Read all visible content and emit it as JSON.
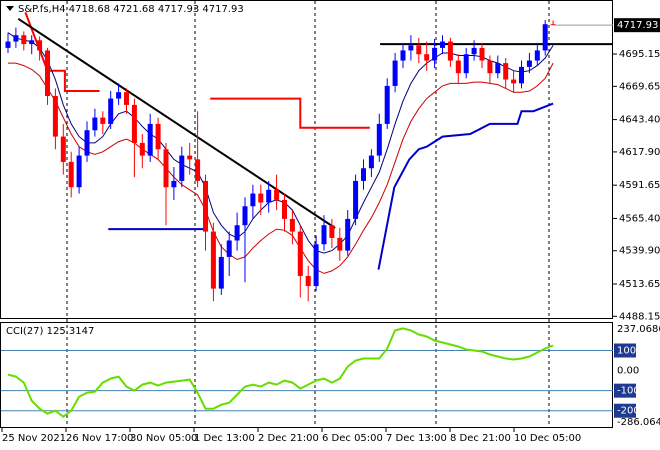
{
  "chart_data": [
    {
      "type": "candlestick",
      "title": "S&P.fs,H4  4718.68 4721.68 4717.93 4717.93",
      "x_labels": [
        "25 Nov 2021",
        "26 Nov 17:00",
        "30 Nov 05:00",
        "1 Dec 13:00",
        "2 Dec 21:00",
        "6 Dec 05:00",
        "7 Dec 13:00",
        "8 Dec 21:00",
        "10 Dec 05:00"
      ],
      "up_color": "#0000ff",
      "down_color": "#ff0000",
      "open": [
        4700,
        4705,
        4710,
        4703,
        4706,
        4698,
        4662,
        4630,
        4610,
        4590,
        4615,
        4635,
        4645,
        4640,
        4660,
        4665,
        4655,
        4625,
        4615,
        4640,
        4620,
        4590,
        4595,
        4615,
        4612,
        4595,
        4555,
        4510,
        4535,
        4548,
        4560,
        4575,
        4585,
        4578,
        4588,
        4580,
        4565,
        4555,
        4520,
        4512,
        4545,
        4560,
        4550,
        4540,
        4565,
        4595,
        4605,
        4615,
        4640,
        4670,
        4690,
        4698,
        4702,
        4695,
        4690,
        4700,
        4705,
        4690,
        4680,
        4695,
        4700,
        4690,
        4680,
        4688,
        4675,
        4672,
        4685,
        4690,
        4698,
        4718.68
      ],
      "high": [
        4712,
        4716,
        4713,
        4710,
        4709,
        4700,
        4668,
        4640,
        4618,
        4622,
        4642,
        4652,
        4650,
        4666,
        4672,
        4668,
        4660,
        4632,
        4648,
        4645,
        4625,
        4606,
        4622,
        4625,
        4650,
        4600,
        4562,
        4545,
        4555,
        4570,
        4582,
        4592,
        4592,
        4595,
        4600,
        4585,
        4572,
        4560,
        4528,
        4552,
        4568,
        4565,
        4558,
        4572,
        4600,
        4612,
        4620,
        4648,
        4676,
        4696,
        4704,
        4710,
        4708,
        4705,
        4707,
        4710,
        4708,
        4695,
        4700,
        4706,
        4704,
        4694,
        4694,
        4692,
        4682,
        4690,
        4696,
        4704,
        4722,
        4721.68
      ],
      "low": [
        4696,
        4700,
        4698,
        4695,
        4690,
        4655,
        4620,
        4600,
        4582,
        4585,
        4610,
        4630,
        4632,
        4636,
        4655,
        4648,
        4598,
        4605,
        4610,
        4612,
        4560,
        4580,
        4590,
        4600,
        4590,
        4540,
        4500,
        4505,
        4520,
        4540,
        4515,
        4565,
        4568,
        4570,
        4572,
        4555,
        4545,
        4503,
        4500,
        4508,
        4540,
        4542,
        4532,
        4536,
        4560,
        4588,
        4598,
        4610,
        4636,
        4665,
        4684,
        4690,
        4688,
        4682,
        4684,
        4695,
        4685,
        4672,
        4676,
        4690,
        4684,
        4672,
        4676,
        4668,
        4665,
        4668,
        4680,
        4686,
        4694,
        4717.93
      ],
      "close": [
        4705,
        4710,
        4703,
        4706,
        4698,
        4662,
        4630,
        4610,
        4590,
        4615,
        4635,
        4645,
        4640,
        4660,
        4665,
        4655,
        4625,
        4615,
        4640,
        4620,
        4590,
        4595,
        4615,
        4612,
        4595,
        4555,
        4510,
        4535,
        4548,
        4560,
        4575,
        4585,
        4578,
        4588,
        4580,
        4565,
        4555,
        4520,
        4512,
        4545,
        4560,
        4550,
        4540,
        4565,
        4595,
        4605,
        4615,
        4640,
        4670,
        4690,
        4698,
        4702,
        4695,
        4690,
        4700,
        4705,
        4690,
        4680,
        4695,
        4700,
        4690,
        4680,
        4688,
        4675,
        4672,
        4685,
        4690,
        4698,
        4718.68,
        4717.93
      ],
      "series": [
        {
          "color": "#000080",
          "values": [
            4712,
            4708,
            4706,
            4705,
            4700,
            4690,
            4675,
            4655,
            4640,
            4630,
            4625,
            4625,
            4630,
            4640,
            4648,
            4650,
            4645,
            4638,
            4632,
            4628,
            4620,
            4612,
            4608,
            4605,
            4602,
            4590,
            4570,
            4560,
            4553,
            4550,
            4555,
            4565,
            4572,
            4578,
            4580,
            4578,
            4572,
            4560,
            4548,
            4540,
            4538,
            4540,
            4545,
            4552,
            4565,
            4578,
            4590,
            4602,
            4620,
            4640,
            4658,
            4672,
            4682,
            4688,
            4692,
            4696,
            4696,
            4694,
            4694,
            4694,
            4693,
            4690,
            4688,
            4685,
            4682,
            4681,
            4682,
            4686,
            4692,
            4702
          ]
        },
        {
          "color": "#cc0000",
          "values": [
            4688,
            4688,
            4686,
            4683,
            4678,
            4668,
            4658,
            4645,
            4632,
            4622,
            4618,
            4616,
            4618,
            4622,
            4626,
            4628,
            4625,
            4620,
            4616,
            4612,
            4605,
            4598,
            4592,
            4588,
            4584,
            4572,
            4555,
            4543,
            4537,
            4533,
            4535,
            4542,
            4548,
            4553,
            4557,
            4556,
            4552,
            4542,
            4532,
            4525,
            4522,
            4524,
            4528,
            4535,
            4545,
            4556,
            4566,
            4578,
            4592,
            4610,
            4628,
            4642,
            4652,
            4660,
            4665,
            4670,
            4672,
            4672,
            4672,
            4673,
            4673,
            4672,
            4671,
            4668,
            4665,
            4665,
            4666,
            4670,
            4676,
            4688
          ]
        }
      ],
      "levels": [
        {
          "color": "#ff0000",
          "x": [
            2.2,
            5,
            7.2,
            7.2,
            11.6,
            null,
            25.6,
            37,
            37,
            45.8
          ],
          "values": [
            4728,
            4682,
            4682,
            4666,
            4666,
            null,
            4660,
            4660,
            4637,
            4637
          ]
        },
        {
          "color": "#0000cc",
          "x": [
            46.9,
            48.9,
            50.8,
            52,
            53,
            55,
            58.5,
            61,
            64.5,
            65,
            66.5,
            69
          ],
          "values": [
            4525,
            4590,
            4612,
            4620,
            4622,
            4630,
            4632,
            4640,
            4640,
            4650,
            4650,
            4656
          ]
        },
        {
          "color": "#0000cc",
          "x": [
            12.7,
            24.7
          ],
          "values": [
            4557,
            4557
          ]
        },
        {
          "color": "#000000",
          "x": [
            1.3,
            41.4
          ],
          "values": [
            4723,
            4557.8
          ]
        },
        {
          "color": "#000000",
          "x": [
            47.1,
            76.5
          ],
          "values": [
            4703,
            4703
          ]
        }
      ],
      "last_price": {
        "value": 4717.93,
        "label": "4717.93"
      },
      "ylim": [
        4486.8,
        4737.8
      ],
      "yticks": [
        {
          "value": 4695.15,
          "label": "4695.15"
        },
        {
          "value": 4669.65,
          "label": "4669.65"
        },
        {
          "value": 4643.4,
          "label": "4643.40"
        },
        {
          "value": 4617.9,
          "label": "4617.90"
        },
        {
          "value": 4591.65,
          "label": "4591.65"
        },
        {
          "value": 4565.4,
          "label": "4565.40"
        },
        {
          "value": 4539.9,
          "label": "4539.90"
        },
        {
          "value": 4513.65,
          "label": "4513.65"
        },
        {
          "value": 4488.15,
          "label": "4488.15"
        }
      ]
    },
    {
      "type": "line",
      "title": "CCI(27) 125.3147",
      "color": "#66dd00",
      "values": [
        -20,
        -30,
        -60,
        -150,
        -190,
        -215,
        -200,
        -230,
        -200,
        -130,
        -110,
        -105,
        -60,
        -40,
        -30,
        -80,
        -100,
        -70,
        -60,
        -75,
        -60,
        -55,
        -50,
        -45,
        -110,
        -190,
        -190,
        -170,
        -160,
        -120,
        -80,
        -70,
        -80,
        -60,
        -70,
        -50,
        -60,
        -90,
        -70,
        -50,
        -40,
        -60,
        -40,
        20,
        50,
        60,
        60,
        60,
        110,
        200,
        210,
        200,
        180,
        170,
        150,
        140,
        130,
        120,
        105,
        100,
        95,
        80,
        70,
        60,
        55,
        60,
        70,
        90,
        110,
        125.3147
      ],
      "levels": [
        100,
        -100,
        -200
      ],
      "ylim": [
        -286.0641,
        237.0686
      ],
      "yticks": [
        237.0686,
        100,
        {
          "value": 0,
          "label": "0.00"
        },
        -100,
        -200,
        -286.0641
      ]
    }
  ]
}
